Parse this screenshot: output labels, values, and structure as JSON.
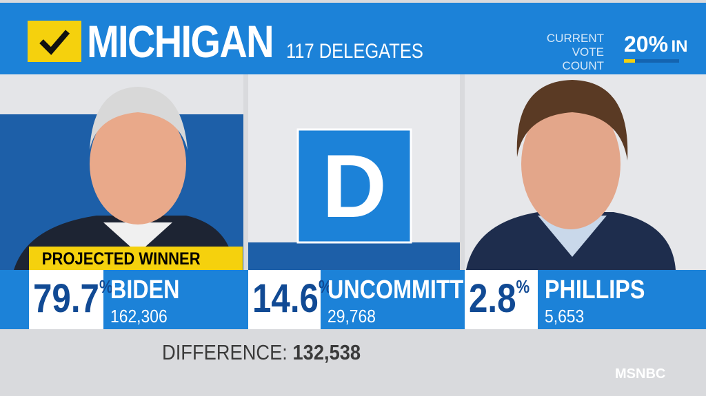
{
  "header": {
    "state": "MICHIGAN",
    "delegates": "117 DELEGATES",
    "vote_count_label_1": "CURRENT",
    "vote_count_label_2": "VOTE COUNT",
    "reporting": "20%",
    "reporting_label": "IN"
  },
  "candidates": [
    {
      "percent": "79.7",
      "percent_unit": "%",
      "name": "BIDEN",
      "votes": "162,306",
      "badge": "PROJECTED WINNER"
    },
    {
      "percent": "14.6",
      "percent_unit": "%",
      "name": "UNCOMMITTED",
      "votes": "29,768",
      "logo": "D"
    },
    {
      "percent": "2.8",
      "percent_unit": "%",
      "name": "PHILLIPS",
      "votes": "5,653"
    }
  ],
  "footer": {
    "difference_label": "DIFFERENCE:",
    "difference_value": "132,538",
    "network": "MSNBC"
  }
}
